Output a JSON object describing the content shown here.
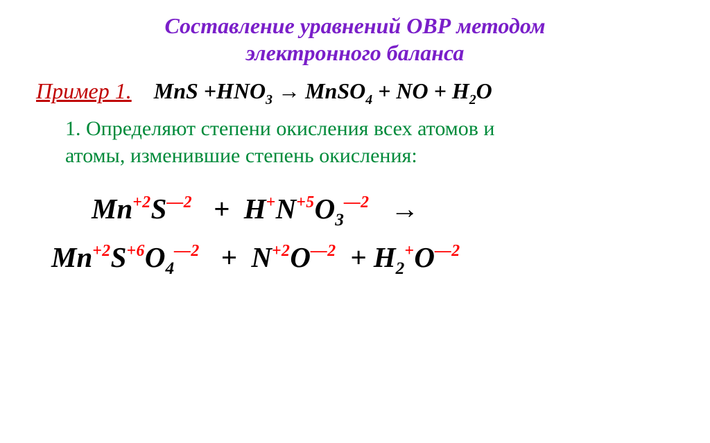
{
  "colors": {
    "title": "#7a1fc9",
    "example_label": "#c00000",
    "equation_black": "#000000",
    "step_text": "#008a3a",
    "oxidation_black": "#000000",
    "superscript_red": "#ff0000",
    "background": "#ffffff"
  },
  "fontsize": {
    "title": 32,
    "example_row": 32,
    "step": 30,
    "oxidation": 41
  },
  "title": {
    "line1": "Составление уравнений ОВР методом",
    "line2": "электронного баланса"
  },
  "example": {
    "label": "Пример 1.",
    "equation_html": "MnS +HNO<sub>3</sub> <span class='arrow'>→</span> MnSO<sub>4</sub> + NO + H<sub>2</sub>O"
  },
  "step": {
    "num_label": "1. ",
    "text1": "Определяют степени окисления всех атомов и",
    "text2": "атомы, изменившие степень окисления:"
  },
  "oxidation": {
    "line1_html": "Mn<sup>+2</sup>S<sup>—2</sup>&nbsp;&nbsp;&nbsp;+&nbsp;&nbsp;H<sup>+</sup>N<sup>+5</sup>O<sub>3</sub><sup>—2</sup>&nbsp;&nbsp;&nbsp;<span class='arrow'>→</span>",
    "line2_html": "Mn<sup>+2</sup>S<sup>+6</sup>O<sub>4</sub><sup>—2</sup>&nbsp;&nbsp;&nbsp;+&nbsp;&nbsp;N<sup>+2</sup>O<sup>—2</sup>&nbsp;&nbsp;+ H<sub>2</sub><sup>+</sup>O<sup>—2</sup>"
  }
}
